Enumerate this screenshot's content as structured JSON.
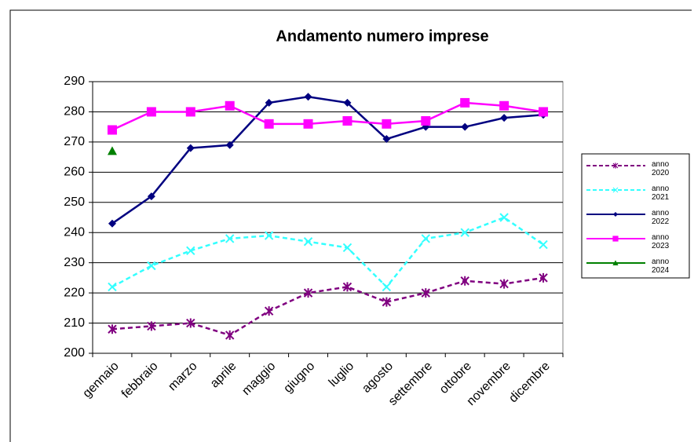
{
  "chart_data": {
    "type": "line",
    "title": "Andamento numero imprese",
    "categories": [
      "gennaio",
      "febbraio",
      "marzo",
      "aprile",
      "maggio",
      "giugno",
      "luglio",
      "agosto",
      "settembre",
      "ottobre",
      "novembre",
      "dicembre"
    ],
    "ylim": [
      200,
      290
    ],
    "yticks": [
      200,
      210,
      220,
      230,
      240,
      250,
      260,
      270,
      280,
      290
    ],
    "grid": true,
    "legend": "right",
    "series": [
      {
        "name": "anno 2020",
        "color": "#800080",
        "dash": true,
        "marker": "asterisk",
        "values": [
          208,
          209,
          210,
          206,
          214,
          220,
          222,
          217,
          220,
          224,
          223,
          225
        ]
      },
      {
        "name": "anno 2021",
        "color": "#33ffff",
        "dash": true,
        "marker": "cross",
        "values": [
          222,
          229,
          234,
          238,
          239,
          237,
          235,
          222,
          238,
          240,
          245,
          236
        ]
      },
      {
        "name": "anno 2022",
        "color": "#000080",
        "dash": false,
        "marker": "diamond",
        "values": [
          243,
          252,
          268,
          269,
          283,
          285,
          283,
          271,
          275,
          275,
          278,
          279
        ]
      },
      {
        "name": "anno 2023",
        "color": "#ff00ff",
        "dash": false,
        "marker": "square",
        "values": [
          274,
          280,
          280,
          282,
          276,
          276,
          277,
          276,
          277,
          283,
          282,
          280
        ]
      },
      {
        "name": "anno 2024",
        "color": "#008000",
        "dash": false,
        "marker": "triangle",
        "values": [
          267,
          null,
          null,
          null,
          null,
          null,
          null,
          null,
          null,
          null,
          null,
          null
        ]
      }
    ]
  }
}
